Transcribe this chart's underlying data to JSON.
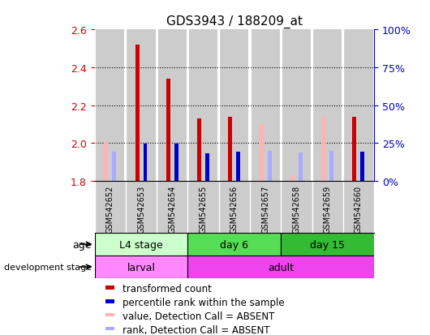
{
  "title": "GDS3943 / 188209_at",
  "samples": [
    "GSM542652",
    "GSM542653",
    "GSM542654",
    "GSM542655",
    "GSM542656",
    "GSM542657",
    "GSM542658",
    "GSM542659",
    "GSM542660"
  ],
  "ylim_left": [
    1.8,
    2.6
  ],
  "ylim_right": [
    0,
    100
  ],
  "yticks_left": [
    1.8,
    2.0,
    2.2,
    2.4,
    2.6
  ],
  "yticks_right": [
    0,
    25,
    50,
    75,
    100
  ],
  "transformed_count": [
    null,
    2.52,
    2.34,
    2.13,
    2.14,
    null,
    null,
    null,
    2.14
  ],
  "transformed_count_absent": [
    2.0,
    null,
    null,
    null,
    null,
    2.1,
    1.83,
    2.14,
    null
  ],
  "percentile_rank": [
    null,
    24.5,
    24.5,
    18.0,
    19.0,
    null,
    null,
    null,
    19.0
  ],
  "percentile_rank_absent": [
    19.0,
    null,
    null,
    null,
    null,
    19.5,
    18.5,
    19.5,
    null
  ],
  "tc_color": "#cc0000",
  "tc_absent_color": "#ffb3b3",
  "pr_color": "#0000cc",
  "pr_absent_color": "#aaaaff",
  "bar_bg_color": "#cccccc",
  "age_groups": [
    {
      "label": "L4 stage",
      "start": 0,
      "end": 3,
      "color": "#ccffcc"
    },
    {
      "label": "day 6",
      "start": 3,
      "end": 6,
      "color": "#55dd55"
    },
    {
      "label": "day 15",
      "start": 6,
      "end": 9,
      "color": "#33bb33"
    }
  ],
  "dev_groups": [
    {
      "label": "larval",
      "start": 0,
      "end": 3,
      "color": "#ff88ff"
    },
    {
      "label": "adult",
      "start": 3,
      "end": 9,
      "color": "#ee44ee"
    }
  ],
  "legend_items": [
    {
      "label": "transformed count",
      "color": "#cc0000"
    },
    {
      "label": "percentile rank within the sample",
      "color": "#0000cc"
    },
    {
      "label": "value, Detection Call = ABSENT",
      "color": "#ffb3b3"
    },
    {
      "label": "rank, Detection Call = ABSENT",
      "color": "#aaaaff"
    }
  ],
  "left_axis_color": "#cc0000",
  "right_axis_color": "#0000cc",
  "grid_yticks": [
    2.0,
    2.2,
    2.4
  ]
}
